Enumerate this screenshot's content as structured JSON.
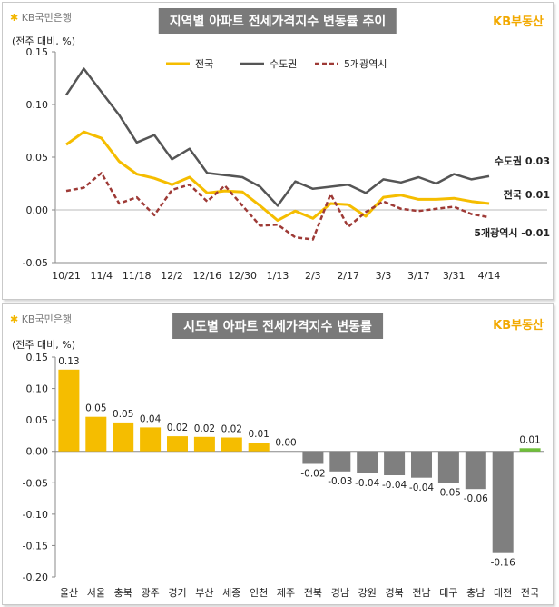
{
  "colors": {
    "nation": "#f5bd00",
    "capital": "#555555",
    "metro": "#9e3a36",
    "pos": "#f5bd00",
    "neg": "#7f7f7f",
    "nation_bar": "#6fbf3a"
  },
  "panel1": {
    "logo": "KB국민은행",
    "brand": "KB부동산",
    "title": "지역별 아파트 전세가격지수 변동률 추이",
    "unit": "(전주 대비, %)",
    "end_labels": [
      "수도권 0.03",
      "전국 0.01",
      "5개광역시 -0.01"
    ]
  },
  "panel2": {
    "logo": "KB국민은행",
    "brand": "KB부동산",
    "title": "시도별 아파트 전세가격지수 변동률",
    "unit": "(전주 대비, %)"
  },
  "chart_data": [
    {
      "type": "line",
      "title": "지역별 아파트 전세가격지수 변동률 추이",
      "ylabel": "(전주 대비, %)",
      "ylim": [
        -0.05,
        0.15
      ],
      "yticks": [
        -0.05,
        0.0,
        0.05,
        0.1,
        0.15
      ],
      "ytick_labels": [
        "-0.05",
        "0.00",
        "0.05",
        "0.10",
        "0.15"
      ],
      "x_tick_labels": [
        "10/21",
        "11/4",
        "11/18",
        "12/2",
        "12/16",
        "12/30",
        "1/13",
        "2/3",
        "2/17",
        "3/3",
        "3/17",
        "3/31",
        "4/14"
      ],
      "legend": [
        "전국",
        "수도권",
        "5개광역시"
      ],
      "series": [
        {
          "name": "전국",
          "values": [
            0.062,
            0.074,
            0.068,
            0.046,
            0.034,
            0.03,
            0.024,
            0.031,
            0.016,
            0.018,
            0.017,
            0.004,
            -0.01,
            -0.001,
            -0.008,
            0.006,
            0.005,
            -0.006,
            0.012,
            0.014,
            0.01,
            0.01,
            0.011,
            0.008,
            0.006
          ]
        },
        {
          "name": "수도권",
          "values": [
            0.109,
            0.134,
            0.112,
            0.09,
            0.064,
            0.071,
            0.048,
            0.058,
            0.035,
            0.033,
            0.031,
            0.022,
            0.004,
            0.027,
            0.02,
            0.022,
            0.024,
            0.016,
            0.029,
            0.026,
            0.031,
            0.025,
            0.034,
            0.029,
            0.032
          ]
        },
        {
          "name": "5개광역시",
          "values": [
            0.018,
            0.021,
            0.035,
            0.006,
            0.012,
            -0.005,
            0.019,
            0.024,
            0.008,
            0.023,
            0.004,
            -0.015,
            -0.014,
            -0.026,
            -0.028,
            0.015,
            -0.016,
            -0.002,
            0.008,
            0.001,
            -0.001,
            0.001,
            0.003,
            -0.004,
            -0.007
          ]
        }
      ]
    },
    {
      "type": "bar",
      "title": "시도별 아파트 전세가격지수 변동률",
      "ylabel": "(전주 대비, %)",
      "ylim": [
        -0.2,
        0.15
      ],
      "yticks": [
        -0.2,
        -0.15,
        -0.1,
        -0.05,
        0.0,
        0.05,
        0.1,
        0.15
      ],
      "ytick_labels": [
        "-0.20",
        "-0.15",
        "-0.10",
        "-0.05",
        "0.00",
        "0.05",
        "0.10",
        "0.15"
      ],
      "categories": [
        "울산",
        "서울",
        "충북",
        "광주",
        "경기",
        "부산",
        "세종",
        "인천",
        "제주",
        "전북",
        "경남",
        "강원",
        "경북",
        "전남",
        "대구",
        "충남",
        "대전",
        "전국"
      ],
      "values": [
        0.13,
        0.055,
        0.046,
        0.038,
        0.024,
        0.023,
        0.022,
        0.014,
        0.0,
        -0.02,
        -0.032,
        -0.035,
        -0.038,
        -0.042,
        -0.05,
        -0.06,
        -0.162,
        0.005
      ],
      "value_labels": [
        "0.13",
        "0.05",
        "0.05",
        "0.04",
        "0.02",
        "0.02",
        "0.02",
        "0.01",
        "0.00",
        "-0.02",
        "-0.03",
        "-0.04",
        "-0.04",
        "-0.04",
        "-0.05",
        "-0.06",
        "-0.16",
        "0.01"
      ]
    }
  ]
}
